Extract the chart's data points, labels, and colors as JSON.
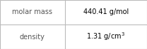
{
  "rows": [
    {
      "label": "molar mass",
      "value": "440.41 g/mol"
    },
    {
      "label": "density",
      "value": "1.31 g/cm³"
    }
  ],
  "background_color": "#ffffff",
  "border_color": "#bbbbbb",
  "label_fontsize": 7,
  "value_fontsize": 7,
  "label_color": "#555555",
  "value_color": "#000000",
  "col_split": 0.44,
  "dpi": 100
}
